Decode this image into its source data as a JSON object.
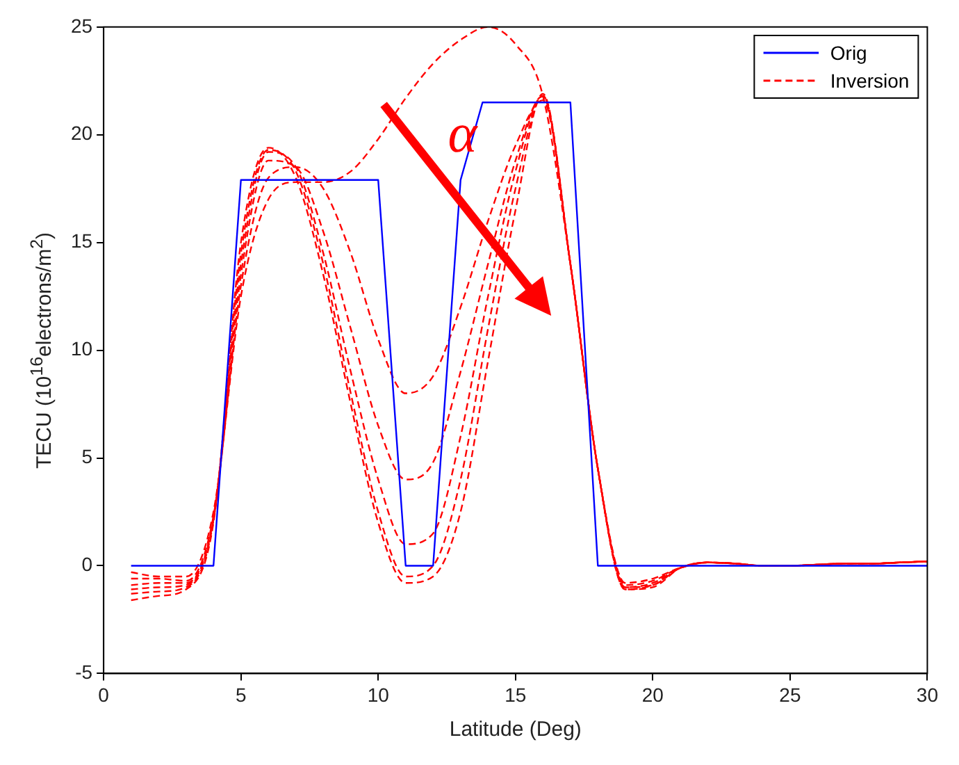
{
  "chart_data": {
    "type": "line",
    "xlabel": "Latitude (Deg)",
    "ylabel": "TECU (10$^{16}$electrons/m$^{2}$)",
    "xlim": [
      0,
      30
    ],
    "xticks": [
      0,
      5,
      10,
      15,
      20,
      25,
      30
    ],
    "ylim": [
      -5,
      25
    ],
    "yticks": [
      -5,
      0,
      5,
      10,
      15,
      20,
      25
    ],
    "grid": false,
    "legend": "top right",
    "annotations": [
      "α"
    ],
    "x": [
      1,
      2,
      3,
      4,
      5,
      6,
      7,
      8,
      9,
      10,
      11,
      12,
      13,
      14,
      15,
      16,
      17,
      18,
      19,
      20,
      21,
      22,
      23,
      24,
      25,
      26,
      27,
      28,
      29,
      30
    ],
    "series": [
      {
        "name": "Orig",
        "color": "#0000ff",
        "line_style": "solid",
        "x": [
          1,
          4,
          5,
          10,
          11,
          12,
          13,
          13.8,
          17,
          18,
          30
        ],
        "values": [
          0,
          0,
          17.9,
          17.9,
          0,
          0,
          17.9,
          21.5,
          21.5,
          0,
          0
        ]
      },
      {
        "name": "Inversion",
        "color": "#ff0000",
        "line_style": "dashed",
        "values": [
          -0.3,
          -0.5,
          -0.5,
          2.5,
          12.5,
          17,
          17.8,
          17.8,
          18.3,
          19.8,
          21.7,
          23.3,
          24.4,
          25,
          24.2,
          21.8,
          14,
          4.5,
          -0.8,
          -0.6,
          -0.1,
          0.15,
          0.1,
          0,
          0,
          0.05,
          0.1,
          0.1,
          0.15,
          0.2
        ]
      },
      {
        "color": "#ff0000",
        "line_style": "dashed",
        "values": [
          -0.6,
          -0.6,
          -0.7,
          2.3,
          13,
          18,
          18.5,
          17.5,
          14.5,
          10.5,
          8,
          8.8,
          12,
          16,
          19.5,
          21.6,
          14,
          4.5,
          -0.9,
          -0.7,
          -0.1,
          0.15,
          0.1,
          0,
          0,
          0.05,
          0.1,
          0.1,
          0.15,
          0.2
        ]
      },
      {
        "color": "#ff0000",
        "line_style": "dashed",
        "values": [
          -0.9,
          -0.8,
          -0.8,
          2.2,
          13.5,
          18.8,
          18.5,
          15.5,
          11,
          6.5,
          4,
          4.8,
          9,
          14,
          18.8,
          21.8,
          14,
          4.5,
          -1,
          -0.8,
          -0.1,
          0.15,
          0.1,
          0,
          0,
          0.05,
          0.1,
          0.1,
          0.15,
          0.2
        ]
      },
      {
        "color": "#ff0000",
        "line_style": "dashed",
        "values": [
          -1.1,
          -1,
          -0.9,
          2.2,
          14,
          19.2,
          18.5,
          14.5,
          9,
          4,
          1,
          1.5,
          6,
          12.5,
          18.3,
          21.8,
          14,
          4.5,
          -1,
          -0.9,
          -0.1,
          0.15,
          0.1,
          0,
          0,
          0.05,
          0.1,
          0.1,
          0.15,
          0.2
        ]
      },
      {
        "color": "#ff0000",
        "line_style": "dashed",
        "values": [
          -1.3,
          -1.2,
          -1,
          2.1,
          14.5,
          19.3,
          18.3,
          14,
          8,
          2.5,
          -0.5,
          0,
          4,
          11,
          17.5,
          21.8,
          14,
          4.5,
          -1.1,
          -0.9,
          -0.1,
          0.15,
          0.1,
          0,
          0,
          0.05,
          0.1,
          0.1,
          0.15,
          0.2
        ]
      },
      {
        "color": "#ff0000",
        "line_style": "dashed",
        "values": [
          -1.6,
          -1.4,
          -1.1,
          2,
          15,
          19.4,
          18,
          13.5,
          7.5,
          2,
          -0.8,
          -0.5,
          2.5,
          9.5,
          16.5,
          21.9,
          14,
          4.5,
          -1.1,
          -1,
          -0.1,
          0.15,
          0.1,
          0,
          0,
          0.05,
          0.1,
          0.1,
          0.15,
          0.2
        ]
      }
    ]
  }
}
